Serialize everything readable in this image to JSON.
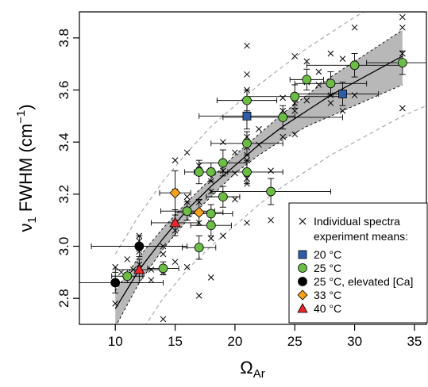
{
  "chart_data": {
    "type": "scatter",
    "xlabel": "Ω",
    "xlabel_sub": "Ar",
    "ylabel": "ν",
    "ylabel_sub": "1",
    "ylabel_rest": " FWHM (cm",
    "ylabel_sup": "−1",
    "ylabel_end": ")",
    "xlim": [
      7,
      36
    ],
    "ylim": [
      2.7,
      3.9
    ],
    "xticks": [
      10,
      15,
      20,
      25,
      30,
      35
    ],
    "yticks": [
      2.8,
      3.0,
      3.2,
      3.4,
      3.6,
      3.8
    ],
    "grid": false,
    "legend_position": "bottom-right",
    "legend": [
      {
        "label": "Individual spectra",
        "marker": "cross",
        "color": "#000000"
      },
      {
        "label": "experiment means:",
        "marker": "none"
      },
      {
        "label": "20 °C",
        "marker": "square",
        "color": "#2f5ea8"
      },
      {
        "label": "25 °C",
        "marker": "circle",
        "color": "#6cbd45"
      },
      {
        "label": "25 °C, elevated [Ca]",
        "marker": "circle",
        "color": "#000000"
      },
      {
        "label": "33 °C",
        "marker": "diamond",
        "color": "#f5a11c"
      },
      {
        "label": "40 °C",
        "marker": "triangle",
        "color": "#e8262b"
      }
    ],
    "fit_line": {
      "x": [
        10,
        12,
        14,
        16,
        18,
        20,
        22,
        24,
        26,
        28,
        30,
        32,
        34
      ],
      "y": [
        2.76,
        2.91,
        3.03,
        3.14,
        3.23,
        3.31,
        3.39,
        3.46,
        3.52,
        3.58,
        3.63,
        3.68,
        3.73
      ]
    },
    "confidence_band": {
      "x": [
        10,
        12,
        14,
        16,
        18,
        20,
        22,
        24,
        26,
        28,
        30,
        32,
        34
      ],
      "lower": [
        2.69,
        2.86,
        2.99,
        3.1,
        3.19,
        3.28,
        3.35,
        3.41,
        3.46,
        3.5,
        3.54,
        3.58,
        3.62
      ],
      "upper": [
        2.83,
        2.96,
        3.07,
        3.17,
        3.26,
        3.35,
        3.43,
        3.51,
        3.58,
        3.65,
        3.71,
        3.77,
        3.83
      ]
    },
    "prediction_band": {
      "x": [
        10,
        12,
        14,
        16,
        18,
        20,
        22,
        24,
        26,
        28,
        30,
        32,
        34,
        36
      ],
      "lower": [
        2.62,
        2.66,
        2.8,
        2.91,
        3.0,
        3.08,
        3.16,
        3.23,
        3.29,
        3.35,
        3.4,
        3.45,
        3.5,
        3.54
      ],
      "upper": [
        2.97,
        3.12,
        3.25,
        3.36,
        3.46,
        3.54,
        3.62,
        3.69,
        3.76,
        3.82,
        3.88,
        3.93,
        3.97,
        4.01
      ]
    },
    "individual_spectra": [
      {
        "x": 10,
        "y": 2.78
      },
      {
        "x": 10,
        "y": 2.92
      },
      {
        "x": 10.5,
        "y": 2.9
      },
      {
        "x": 11,
        "y": 2.95
      },
      {
        "x": 11,
        "y": 2.89
      },
      {
        "x": 11.5,
        "y": 2.91
      },
      {
        "x": 12,
        "y": 2.98
      },
      {
        "x": 12,
        "y": 3.02
      },
      {
        "x": 12,
        "y": 3.04
      },
      {
        "x": 12,
        "y": 2.99
      },
      {
        "x": 12,
        "y": 2.93
      },
      {
        "x": 13,
        "y": 2.87
      },
      {
        "x": 13,
        "y": 2.91
      },
      {
        "x": 14,
        "y": 2.72
      },
      {
        "x": 14,
        "y": 2.97
      },
      {
        "x": 14,
        "y": 3.0
      },
      {
        "x": 14,
        "y": 2.9
      },
      {
        "x": 15,
        "y": 3.33
      },
      {
        "x": 15,
        "y": 3.21
      },
      {
        "x": 15,
        "y": 3.09
      },
      {
        "x": 15,
        "y": 3.06
      },
      {
        "x": 15,
        "y": 2.94
      },
      {
        "x": 16,
        "y": 3.36
      },
      {
        "x": 16,
        "y": 3.19
      },
      {
        "x": 16,
        "y": 3.17
      },
      {
        "x": 16,
        "y": 3.13
      },
      {
        "x": 16,
        "y": 2.92
      },
      {
        "x": 17,
        "y": 3.31
      },
      {
        "x": 17,
        "y": 3.17
      },
      {
        "x": 17,
        "y": 3.13
      },
      {
        "x": 17,
        "y": 3.09
      },
      {
        "x": 17,
        "y": 2.81
      },
      {
        "x": 18,
        "y": 3.29
      },
      {
        "x": 18,
        "y": 3.25
      },
      {
        "x": 18,
        "y": 3.21
      },
      {
        "x": 18,
        "y": 3.09
      },
      {
        "x": 18,
        "y": 3.03
      },
      {
        "x": 18,
        "y": 2.88
      },
      {
        "x": 19,
        "y": 3.4
      },
      {
        "x": 19,
        "y": 3.29
      },
      {
        "x": 19,
        "y": 3.04
      },
      {
        "x": 20,
        "y": 3.36
      },
      {
        "x": 20,
        "y": 3.28
      },
      {
        "x": 20,
        "y": 3.18
      },
      {
        "x": 21,
        "y": 3.77
      },
      {
        "x": 21,
        "y": 3.66
      },
      {
        "x": 21,
        "y": 3.6
      },
      {
        "x": 21,
        "y": 3.5
      },
      {
        "x": 21,
        "y": 3.42
      },
      {
        "x": 21,
        "y": 3.38
      },
      {
        "x": 21,
        "y": 3.35
      },
      {
        "x": 21,
        "y": 3.33
      },
      {
        "x": 21,
        "y": 3.28
      },
      {
        "x": 21,
        "y": 3.26
      },
      {
        "x": 21,
        "y": 3.24
      },
      {
        "x": 21,
        "y": 3.09
      },
      {
        "x": 22,
        "y": 3.45
      },
      {
        "x": 22,
        "y": 3.39
      },
      {
        "x": 23,
        "y": 3.29
      },
      {
        "x": 23,
        "y": 3.1
      },
      {
        "x": 24,
        "y": 3.57
      },
      {
        "x": 24,
        "y": 3.52
      },
      {
        "x": 24,
        "y": 3.5
      },
      {
        "x": 24,
        "y": 3.42
      },
      {
        "x": 25,
        "y": 3.73
      },
      {
        "x": 25,
        "y": 3.57
      },
      {
        "x": 25,
        "y": 3.55
      },
      {
        "x": 25,
        "y": 3.52
      },
      {
        "x": 25,
        "y": 3.43
      },
      {
        "x": 26,
        "y": 3.71
      },
      {
        "x": 26,
        "y": 3.63
      },
      {
        "x": 26,
        "y": 3.56
      },
      {
        "x": 27,
        "y": 3.67
      },
      {
        "x": 27,
        "y": 3.62
      },
      {
        "x": 28,
        "y": 3.74
      },
      {
        "x": 28,
        "y": 3.58
      },
      {
        "x": 28,
        "y": 3.55
      },
      {
        "x": 29,
        "y": 3.72
      },
      {
        "x": 29,
        "y": 3.58
      },
      {
        "x": 29,
        "y": 3.52
      },
      {
        "x": 30,
        "y": 3.84
      },
      {
        "x": 30,
        "y": 3.58
      },
      {
        "x": 34,
        "y": 3.88
      },
      {
        "x": 34,
        "y": 3.84
      },
      {
        "x": 34,
        "y": 3.74
      },
      {
        "x": 34,
        "y": 3.53
      }
    ],
    "means": [
      {
        "series": "20 °C",
        "x": 21,
        "y": 3.5,
        "xerr": [
          17,
          25
        ],
        "yerr": [
          3.45,
          3.55
        ]
      },
      {
        "series": "20 °C",
        "x": 29,
        "y": 3.585,
        "xerr": [
          25,
          32
        ],
        "yerr": [
          3.54,
          3.63
        ]
      },
      {
        "series": "25 °C",
        "x": 11,
        "y": 2.885,
        "xerr": [
          9.7,
          12.3
        ],
        "yerr": [
          2.86,
          2.91
        ]
      },
      {
        "series": "25 °C",
        "x": 14,
        "y": 2.915,
        "xerr": [
          12.7,
          15.3
        ],
        "yerr": [
          2.89,
          2.94
        ]
      },
      {
        "series": "25 °C",
        "x": 16,
        "y": 3.135,
        "xerr": [
          13.8,
          18.3
        ],
        "yerr": [
          3.1,
          3.17
        ]
      },
      {
        "series": "25 °C",
        "x": 17,
        "y": 2.995,
        "xerr": [
          15.6,
          18.4
        ],
        "yerr": [
          2.95,
          3.04
        ]
      },
      {
        "series": "25 °C",
        "x": 17,
        "y": 3.285,
        "xerr": [
          15.8,
          18.2
        ],
        "yerr": [
          3.24,
          3.33
        ]
      },
      {
        "series": "25 °C",
        "x": 18,
        "y": 3.08,
        "xerr": [
          16.3,
          19.7
        ],
        "yerr": [
          3.04,
          3.12
        ]
      },
      {
        "series": "25 °C",
        "x": 18,
        "y": 3.125,
        "xerr": [
          16.2,
          19.8
        ],
        "yerr": [
          3.09,
          3.16
        ]
      },
      {
        "series": "25 °C",
        "x": 18,
        "y": 3.285,
        "xerr": [
          16.6,
          19.4
        ],
        "yerr": [
          3.25,
          3.32
        ]
      },
      {
        "series": "25 °C",
        "x": 19,
        "y": 3.19,
        "xerr": [
          17.6,
          20.4
        ],
        "yerr": [
          3.15,
          3.23
        ]
      },
      {
        "series": "25 °C",
        "x": 19,
        "y": 3.32,
        "xerr": [
          17,
          21
        ],
        "yerr": [
          3.27,
          3.37
        ]
      },
      {
        "series": "25 °C",
        "x": 21,
        "y": 3.285,
        "xerr": [
          18,
          24
        ],
        "yerr": [
          3.24,
          3.33
        ]
      },
      {
        "series": "25 °C",
        "x": 21,
        "y": 3.395,
        "xerr": [
          18,
          24
        ],
        "yerr": [
          3.35,
          3.44
        ]
      },
      {
        "series": "25 °C",
        "x": 21,
        "y": 3.56,
        "xerr": [
          18.5,
          23.5
        ],
        "yerr": [
          3.52,
          3.6
        ]
      },
      {
        "series": "25 °C",
        "x": 23,
        "y": 3.21,
        "xerr": [
          18,
          28
        ],
        "yerr": [
          3.16,
          3.26
        ]
      },
      {
        "series": "25 °C",
        "x": 24,
        "y": 3.495,
        "xerr": [
          19,
          29
        ],
        "yerr": [
          3.45,
          3.54
        ]
      },
      {
        "series": "25 °C",
        "x": 25,
        "y": 3.575,
        "xerr": [
          21,
          29
        ],
        "yerr": [
          3.53,
          3.62
        ]
      },
      {
        "series": "25 °C",
        "x": 26,
        "y": 3.64,
        "xerr": [
          24.6,
          27.4
        ],
        "yerr": [
          3.6,
          3.68
        ]
      },
      {
        "series": "25 °C",
        "x": 28,
        "y": 3.625,
        "xerr": [
          25,
          31
        ],
        "yerr": [
          3.58,
          3.67
        ]
      },
      {
        "series": "25 °C",
        "x": 30,
        "y": 3.695,
        "xerr": [
          26,
          34
        ],
        "yerr": [
          3.65,
          3.74
        ]
      },
      {
        "series": "25 °C",
        "x": 34,
        "y": 3.705,
        "xerr": [
          31,
          36.5
        ],
        "yerr": [
          3.66,
          3.75
        ]
      },
      {
        "series": "25 °C, elevated [Ca]",
        "x": 10,
        "y": 2.86,
        "xerr": [
          6,
          14
        ],
        "yerr": [
          2.82,
          2.9
        ]
      },
      {
        "series": "25 °C, elevated [Ca]",
        "x": 12,
        "y": 3.0,
        "xerr": [
          8,
          16
        ],
        "yerr": [
          2.96,
          3.04
        ]
      },
      {
        "series": "33 °C",
        "x": 15,
        "y": 3.205,
        "xerr": [
          13.7,
          16.3
        ],
        "yerr": [
          3.12,
          3.29
        ]
      },
      {
        "series": "33 °C",
        "x": 17,
        "y": 3.13,
        "xerr": [
          15,
          19
        ],
        "yerr": [
          3.08,
          3.18
        ]
      },
      {
        "series": "40 °C",
        "x": 12,
        "y": 2.91,
        "xerr": [
          10,
          14
        ],
        "yerr": [
          2.86,
          2.95
        ]
      },
      {
        "series": "40 °C",
        "x": 15,
        "y": 3.09,
        "xerr": [
          13,
          17
        ],
        "yerr": [
          3.04,
          3.14
        ]
      }
    ]
  }
}
